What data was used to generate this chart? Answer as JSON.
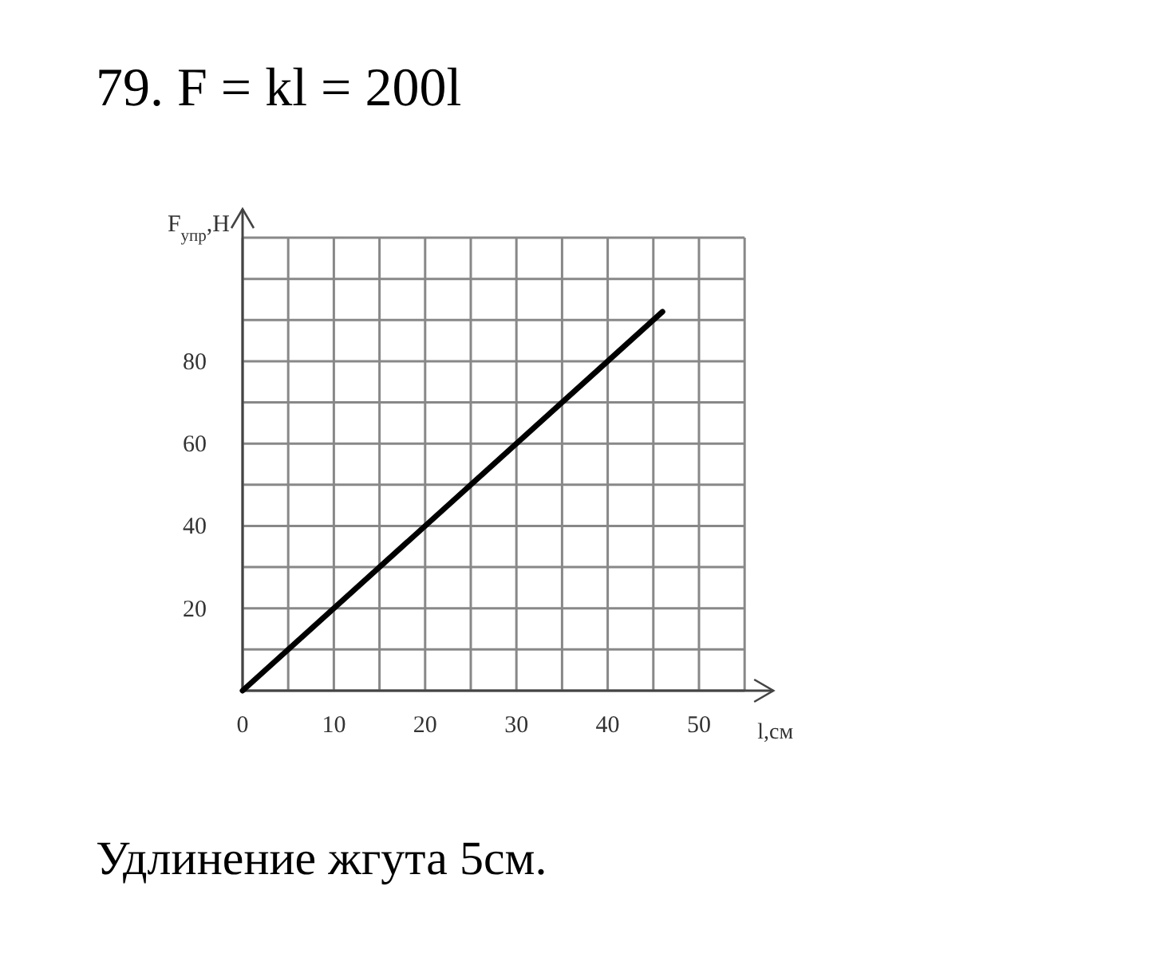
{
  "chart_data": {
    "type": "line",
    "title": "79. F = kl = 200l",
    "xlabel": "l,см",
    "ylabel": "F$_{упр}$,Н",
    "x": [
      0,
      46
    ],
    "values": [
      0,
      92
    ],
    "color": "#000000",
    "marker": "none",
    "line_style": "solid",
    "xlim": [
      0,
      55
    ],
    "ylim": [
      0,
      110
    ],
    "xticks": [
      0,
      {
        "value": 5,
        "label": null
      },
      10,
      {
        "value": 15,
        "label": null
      },
      20,
      {
        "value": 25,
        "label": null
      },
      30,
      {
        "value": 35,
        "label": null
      },
      40,
      {
        "value": 45,
        "label": null
      },
      50,
      {
        "value": 55,
        "label": null
      }
    ],
    "yticks": [
      {
        "value": 0,
        "label": null
      },
      {
        "value": 10,
        "label": null
      },
      20,
      {
        "value": 30,
        "label": null
      },
      40,
      {
        "value": 50,
        "label": null
      },
      60,
      {
        "value": 70,
        "label": null
      },
      80,
      {
        "value": 90,
        "label": null
      },
      {
        "value": 100,
        "label": null
      },
      {
        "value": 110,
        "label": null
      }
    ],
    "grid": true,
    "annotations": [
      "Удлинение жгута 5см."
    ]
  }
}
